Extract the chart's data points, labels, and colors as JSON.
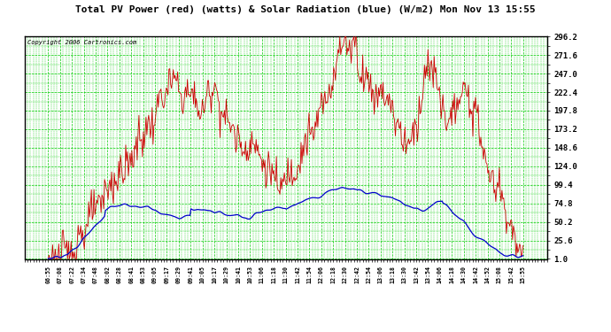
{
  "title": "Total PV Power (red) (watts) & Solar Radiation (blue) (W/m2) Mon Nov 13 15:55",
  "copyright_text": "Copyright 2006 Cartronics.com",
  "bg_color": "#ffffff",
  "plot_bg_color": "#ffffff",
  "grid_color": "#00cc00",
  "title_color": "#000000",
  "tick_color": "#000000",
  "red_line_color": "#cc0000",
  "blue_line_color": "#0000cc",
  "yticks": [
    1.0,
    25.6,
    50.2,
    74.8,
    99.4,
    124.0,
    148.6,
    173.2,
    197.8,
    222.4,
    247.0,
    271.6,
    296.2
  ],
  "xtick_labels": [
    "06:55",
    "07:08",
    "07:22",
    "07:34",
    "07:48",
    "08:02",
    "08:28",
    "08:41",
    "08:53",
    "09:05",
    "09:17",
    "09:29",
    "09:41",
    "10:05",
    "10:17",
    "10:29",
    "10:41",
    "10:53",
    "11:06",
    "11:18",
    "11:30",
    "11:42",
    "11:54",
    "12:06",
    "12:18",
    "12:30",
    "12:42",
    "12:54",
    "13:06",
    "13:18",
    "13:30",
    "13:42",
    "13:54",
    "14:06",
    "14:18",
    "14:30",
    "14:42",
    "14:52",
    "15:08",
    "15:42",
    "15:55"
  ],
  "ymin": 1.0,
  "ymax": 296.2,
  "n_points": 540
}
